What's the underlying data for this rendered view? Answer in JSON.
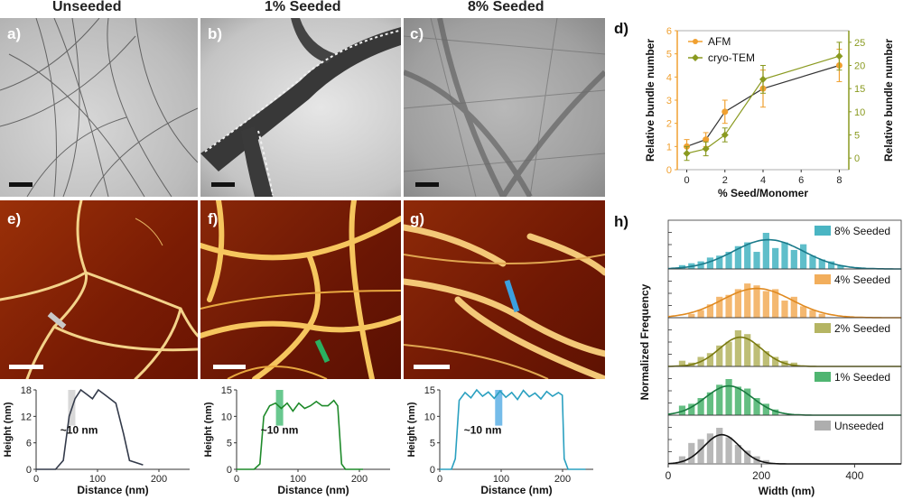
{
  "columns": {
    "unseeded": "Unseeded",
    "seeded1": "1% Seeded",
    "seeded8": "8% Seeded"
  },
  "panel_labels": {
    "a": "a)",
    "b": "b)",
    "c": "c)",
    "d": "d)",
    "e": "e)",
    "f": "f)",
    "g": "g)",
    "h": "h)"
  },
  "colors": {
    "afm": "#f0a030",
    "cryo": "#8a9a20",
    "afm_bg": "#8a2a08",
    "profile_e": "#333a4a",
    "profile_f": "#1e8a2a",
    "profile_g": "#2aa0c0",
    "marker_e": "#c8c8c8",
    "marker_f": "#2ab060",
    "marker_g": "#3aa0e0"
  },
  "profiles": [
    {
      "id": "e",
      "ylabel": "Height (nm)",
      "xlabel": "Distance (nm)",
      "annotation": "~10 nm",
      "yticks": [
        "0",
        "6",
        "12",
        "18"
      ],
      "xticks": [
        "0",
        "100",
        "200"
      ]
    },
    {
      "id": "f",
      "ylabel": "Height (nm)",
      "xlabel": "Distance (nm)",
      "annotation": "~10 nm",
      "yticks": [
        "0",
        "5",
        "10",
        "15"
      ],
      "xticks": [
        "0",
        "100",
        "200"
      ]
    },
    {
      "id": "g",
      "ylabel": "Height (nm)",
      "xlabel": "Distance (nm)",
      "annotation": "~10 nm",
      "yticks": [
        "0",
        "5",
        "10",
        "15"
      ],
      "xticks": [
        "0",
        "100",
        "200"
      ]
    }
  ],
  "chart_data": [
    {
      "id": "d",
      "type": "line",
      "xlabel": "% Seed/Monomer",
      "ylabel": "Relative bundle number",
      "ylabel_right": "Relative bundle number",
      "x": [
        0,
        1,
        2,
        4,
        8
      ],
      "xlim": [
        -0.5,
        8.5
      ],
      "xticks": [
        0,
        2,
        4,
        6,
        8
      ],
      "ylim_left": [
        0,
        6
      ],
      "yticks_left": [
        0,
        1,
        2,
        3,
        4,
        5,
        6
      ],
      "ylim_right": [
        -2.5,
        27.5
      ],
      "yticks_right": [
        0,
        5,
        10,
        15,
        20,
        25
      ],
      "series": [
        {
          "name": "AFM",
          "axis": "left",
          "values": [
            1.0,
            1.3,
            2.5,
            3.5,
            4.5
          ],
          "errors": [
            0.3,
            0.3,
            0.5,
            0.8,
            0.7
          ]
        },
        {
          "name": "cryo-TEM",
          "axis": "right",
          "values": [
            1.0,
            2.0,
            5.0,
            17.0,
            22.0
          ],
          "errors": [
            1.5,
            1.5,
            1.5,
            3.0,
            3.0
          ]
        }
      ]
    },
    {
      "id": "h",
      "type": "bar",
      "xlabel": "Width (nm)",
      "ylabel": "Normalized Frequency",
      "xlim": [
        0,
        500
      ],
      "xticks": [
        0,
        200,
        400
      ],
      "bin_width": 20,
      "series": [
        {
          "name": "8% Seeded",
          "color": "#2aa8b8",
          "mean": 215,
          "sd": 75,
          "bins": [
            30,
            50,
            70,
            90,
            110,
            130,
            150,
            170,
            190,
            210,
            230,
            250,
            270,
            290,
            310,
            330,
            350,
            370
          ],
          "values": [
            0.1,
            0.15,
            0.2,
            0.3,
            0.35,
            0.45,
            0.6,
            0.7,
            0.45,
            0.95,
            0.55,
            0.7,
            0.5,
            0.65,
            0.35,
            0.25,
            0.2,
            0.1
          ]
        },
        {
          "name": "4% Seeded",
          "color": "#f0a040",
          "mean": 190,
          "sd": 75,
          "bins": [
            50,
            70,
            90,
            110,
            130,
            150,
            170,
            190,
            210,
            230,
            250,
            270,
            290,
            310,
            330
          ],
          "values": [
            0.1,
            0.2,
            0.35,
            0.55,
            0.6,
            0.75,
            0.9,
            0.85,
            0.7,
            0.75,
            0.45,
            0.55,
            0.3,
            0.2,
            0.1
          ]
        },
        {
          "name": "2% Seeded",
          "color": "#a8a848",
          "mean": 155,
          "sd": 45,
          "bins": [
            30,
            50,
            70,
            90,
            110,
            130,
            150,
            170,
            190,
            210,
            230,
            250,
            270
          ],
          "values": [
            0.15,
            0.1,
            0.25,
            0.35,
            0.55,
            0.65,
            0.95,
            0.85,
            0.6,
            0.4,
            0.25,
            0.15,
            0.1
          ]
        },
        {
          "name": "1% Seeded",
          "color": "#30a858",
          "mean": 130,
          "sd": 50,
          "bins": [
            30,
            50,
            70,
            90,
            110,
            130,
            150,
            170,
            190,
            210,
            230
          ],
          "values": [
            0.25,
            0.3,
            0.45,
            0.6,
            0.8,
            0.95,
            0.75,
            0.7,
            0.45,
            0.3,
            0.15
          ]
        },
        {
          "name": "Unseeded",
          "color": "#a0a0a0",
          "mean": 115,
          "sd": 38,
          "bins": [
            30,
            50,
            70,
            90,
            110,
            130,
            150,
            170,
            190,
            210
          ],
          "values": [
            0.2,
            0.55,
            0.65,
            0.8,
            0.95,
            0.7,
            0.5,
            0.35,
            0.2,
            0.1
          ]
        }
      ]
    }
  ]
}
